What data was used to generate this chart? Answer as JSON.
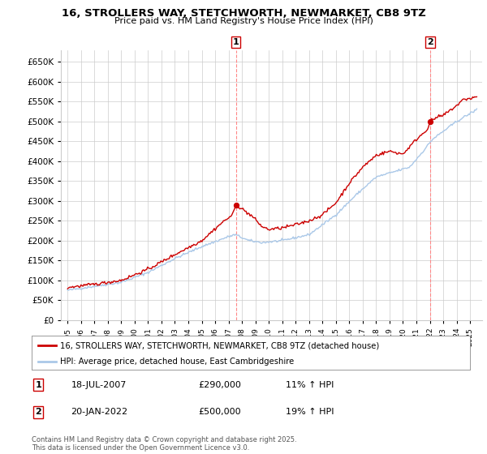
{
  "title_line1": "16, STROLLERS WAY, STETCHWORTH, NEWMARKET, CB8 9TZ",
  "title_line2": "Price paid vs. HM Land Registry's House Price Index (HPI)",
  "background_color": "#ffffff",
  "plot_bg_color": "#ffffff",
  "grid_color": "#cccccc",
  "hpi_color": "#aac8e8",
  "price_color": "#cc0000",
  "dashed_color": "#ff8888",
  "legend_label_price": "16, STROLLERS WAY, STETCHWORTH, NEWMARKET, CB8 9TZ (detached house)",
  "legend_label_hpi": "HPI: Average price, detached house, East Cambridgeshire",
  "sale1_date": "18-JUL-2007",
  "sale1_price": "£290,000",
  "sale1_hpi": "11% ↑ HPI",
  "sale2_date": "20-JAN-2022",
  "sale2_price": "£500,000",
  "sale2_hpi": "19% ↑ HPI",
  "footer": "Contains HM Land Registry data © Crown copyright and database right 2025.\nThis data is licensed under the Open Government Licence v3.0.",
  "ylim": [
    0,
    680000
  ],
  "yticks": [
    0,
    50000,
    100000,
    150000,
    200000,
    250000,
    300000,
    350000,
    400000,
    450000,
    500000,
    550000,
    600000,
    650000
  ],
  "sale1_year": 2007.54,
  "sale2_year": 2022.05
}
